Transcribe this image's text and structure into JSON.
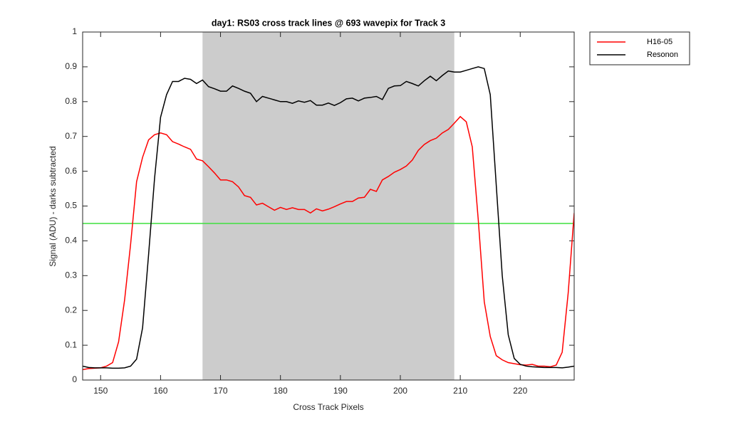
{
  "chart_data": {
    "type": "line",
    "title": "day1: RS03  cross track lines @ 693 wavepix for Track 3",
    "xlabel": "Cross Track Pixels",
    "ylabel": "Signal (ADU) - darks subtracted",
    "xlim": [
      147,
      229
    ],
    "ylim": [
      0,
      1
    ],
    "xticks": [
      150,
      160,
      170,
      180,
      190,
      200,
      210,
      220
    ],
    "yticks": [
      0,
      0.1,
      0.2,
      0.3,
      0.4,
      0.5,
      0.6,
      0.7,
      0.8,
      0.9,
      1
    ],
    "shaded_x": [
      167,
      209
    ],
    "shade_color": "#cccccc",
    "hline": {
      "value": 0.45,
      "color": "#3ee03e"
    },
    "legend": "upper right outside",
    "x": [
      147,
      148,
      149,
      150,
      151,
      152,
      153,
      154,
      155,
      156,
      157,
      158,
      159,
      160,
      161,
      162,
      163,
      164,
      165,
      166,
      167,
      168,
      169,
      170,
      171,
      172,
      173,
      174,
      175,
      176,
      177,
      178,
      179,
      180,
      181,
      182,
      183,
      184,
      185,
      186,
      187,
      188,
      189,
      190,
      191,
      192,
      193,
      194,
      195,
      196,
      197,
      198,
      199,
      200,
      201,
      202,
      203,
      204,
      205,
      206,
      207,
      208,
      209,
      210,
      211,
      212,
      213,
      214,
      215,
      216,
      217,
      218,
      219,
      220,
      221,
      222,
      223,
      224,
      225,
      226,
      227,
      228,
      229
    ],
    "series": [
      {
        "name": "H16-05",
        "color": "#ff0000",
        "values": [
          0.03,
          0.033,
          0.034,
          0.035,
          0.04,
          0.05,
          0.11,
          0.23,
          0.39,
          0.57,
          0.64,
          0.69,
          0.705,
          0.71,
          0.705,
          0.685,
          0.678,
          0.67,
          0.663,
          0.635,
          0.63,
          0.613,
          0.595,
          0.575,
          0.575,
          0.57,
          0.555,
          0.53,
          0.525,
          0.503,
          0.508,
          0.498,
          0.488,
          0.496,
          0.49,
          0.495,
          0.49,
          0.49,
          0.48,
          0.492,
          0.486,
          0.491,
          0.498,
          0.506,
          0.513,
          0.513,
          0.523,
          0.525,
          0.548,
          0.542,
          0.575,
          0.585,
          0.597,
          0.605,
          0.615,
          0.632,
          0.66,
          0.677,
          0.688,
          0.695,
          0.71,
          0.72,
          0.738,
          0.757,
          0.742,
          0.67,
          0.46,
          0.225,
          0.125,
          0.07,
          0.058,
          0.05,
          0.047,
          0.044,
          0.043,
          0.045,
          0.04,
          0.04,
          0.038,
          0.043,
          0.08,
          0.25,
          0.48
        ]
      },
      {
        "name": "Resonon",
        "color": "#000000",
        "values": [
          0.04,
          0.036,
          0.035,
          0.035,
          0.035,
          0.034,
          0.034,
          0.035,
          0.04,
          0.06,
          0.15,
          0.36,
          0.58,
          0.755,
          0.82,
          0.858,
          0.858,
          0.867,
          0.864,
          0.852,
          0.862,
          0.843,
          0.837,
          0.83,
          0.83,
          0.845,
          0.838,
          0.83,
          0.824,
          0.8,
          0.815,
          0.81,
          0.805,
          0.8,
          0.8,
          0.795,
          0.802,
          0.798,
          0.803,
          0.79,
          0.79,
          0.796,
          0.789,
          0.797,
          0.808,
          0.81,
          0.802,
          0.81,
          0.812,
          0.815,
          0.806,
          0.838,
          0.845,
          0.846,
          0.858,
          0.852,
          0.845,
          0.86,
          0.873,
          0.86,
          0.875,
          0.888,
          0.885,
          0.885,
          0.89,
          0.895,
          0.9,
          0.895,
          0.82,
          0.56,
          0.3,
          0.13,
          0.062,
          0.045,
          0.04,
          0.038,
          0.037,
          0.036,
          0.036,
          0.036,
          0.035,
          0.037,
          0.04
        ]
      }
    ]
  }
}
